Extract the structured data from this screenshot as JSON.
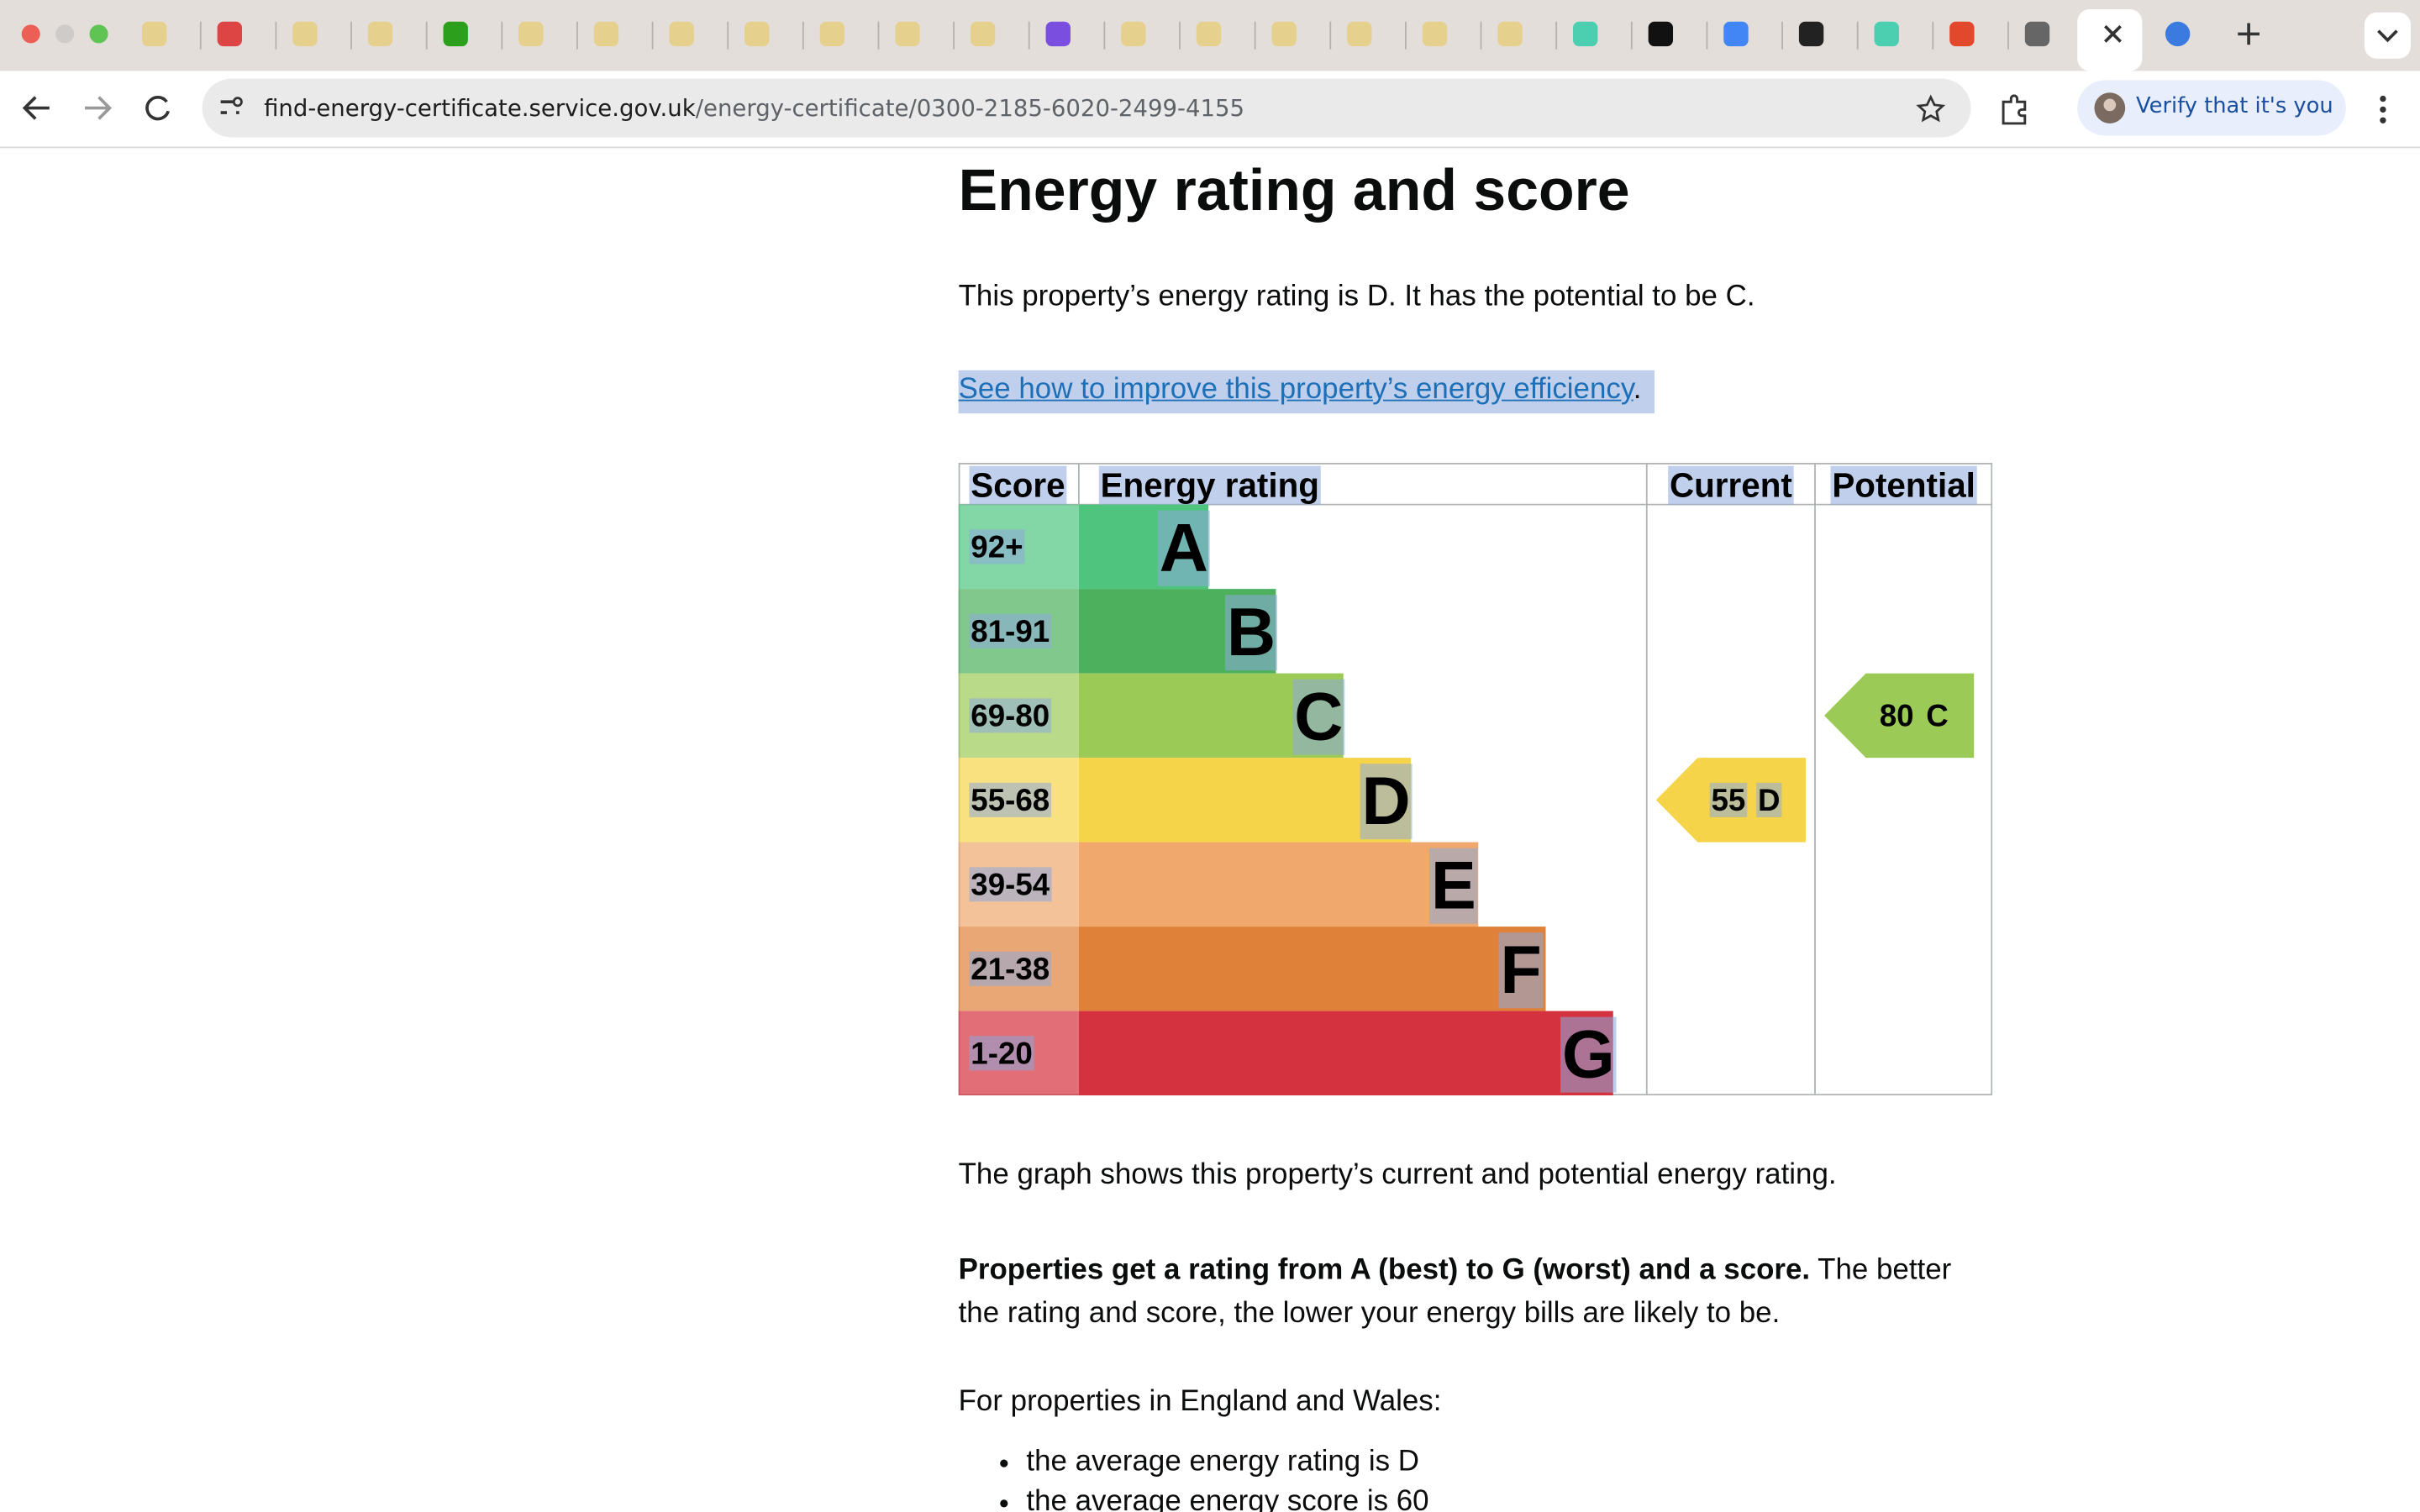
{
  "browser": {
    "url_host": "find-energy-certificate.service.gov.uk",
    "url_path": "/energy-certificate/0300-2185-6020-2499-4155",
    "profile_button": "Verify that it's you"
  },
  "page": {
    "heading": "Energy rating and score",
    "intro": "This property’s energy rating is D. It has the potential to be C.",
    "link": "See how to improve this property’s energy efficiency",
    "link_suffix": ".",
    "rating_table": {
      "headers": [
        "Score",
        "Energy rating",
        "Current",
        "Potential"
      ],
      "bands": [
        {
          "score": "92+",
          "letter": "A",
          "color": "#4fc47f"
        },
        {
          "score": "81-91",
          "letter": "B",
          "color": "#4cb05d"
        },
        {
          "score": "69-80",
          "letter": "C",
          "color": "#9bcb56"
        },
        {
          "score": "55-68",
          "letter": "D",
          "color": "#f6d44a"
        },
        {
          "score": "39-54",
          "letter": "E",
          "color": "#f0a86c"
        },
        {
          "score": "21-38",
          "letter": "F",
          "color": "#e0813a"
        },
        {
          "score": "1-20",
          "letter": "G",
          "color": "#d5323f"
        }
      ],
      "current": {
        "score": "55",
        "letter": "D",
        "color": "#f6d44a"
      },
      "potential": {
        "score": "80",
        "letter": "C",
        "color": "#9bcb56"
      }
    },
    "graph_note": "The graph shows this property’s current and potential energy rating.",
    "bold_note": "Properties get a rating from A (best) to G (worst) and a score.",
    "note_rest": " The better the rating and score, the lower your energy bills are likely to be.",
    "region_intro": "For properties in England and Wales:",
    "bullets": [
      "the average energy rating is D",
      "the average energy score is 60"
    ]
  }
}
